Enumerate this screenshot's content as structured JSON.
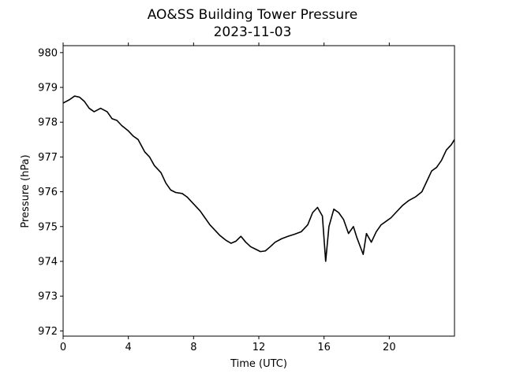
{
  "chart_data": {
    "type": "line",
    "title": "AO&SS Building Tower Pressure",
    "subtitle": "2023-11-03",
    "xlabel": "Time (UTC)",
    "ylabel": "Pressure (hPa)",
    "xlim": [
      0,
      24
    ],
    "ylim": [
      971.85,
      980.2
    ],
    "xticks": [
      0,
      4,
      8,
      12,
      16,
      20
    ],
    "yticks": [
      972,
      973,
      974,
      975,
      976,
      977,
      978,
      979,
      980
    ],
    "grid": false,
    "line_color": "#000000",
    "series": [
      {
        "x": [
          0,
          0.4,
          0.7,
          1.0,
          1.3,
          1.6,
          1.9,
          2.3,
          2.7,
          3.0,
          3.3,
          3.6,
          4.0,
          4.3,
          4.6,
          5.0,
          5.3,
          5.6,
          6.0,
          6.3,
          6.6,
          6.9,
          7.3,
          7.6,
          8.0,
          8.4,
          8.7,
          9.0,
          9.3,
          9.6,
          10.0,
          10.3,
          10.6,
          10.9,
          11.2,
          11.5,
          11.8,
          12.1,
          12.4,
          12.7,
          13.0,
          13.4,
          13.8,
          14.2,
          14.6,
          15.0,
          15.3,
          15.6,
          15.9,
          16.1,
          16.3,
          16.6,
          16.9,
          17.2,
          17.5,
          17.8,
          18.0,
          18.2,
          18.4,
          18.6,
          18.9,
          19.2,
          19.5,
          19.8,
          20.1,
          20.4,
          20.8,
          21.2,
          21.6,
          22.0,
          22.3,
          22.6,
          22.9,
          23.2,
          23.5,
          23.8,
          24.0
        ],
        "y": [
          978.55,
          978.65,
          978.75,
          978.72,
          978.6,
          978.4,
          978.3,
          978.4,
          978.3,
          978.1,
          978.05,
          977.9,
          977.75,
          977.6,
          977.5,
          977.15,
          977.0,
          976.75,
          976.55,
          976.25,
          976.05,
          975.98,
          975.95,
          975.85,
          975.65,
          975.45,
          975.25,
          975.05,
          974.9,
          974.75,
          974.6,
          974.52,
          974.58,
          974.72,
          974.55,
          974.42,
          974.35,
          974.28,
          974.3,
          974.42,
          974.55,
          974.65,
          974.72,
          974.78,
          974.85,
          975.05,
          975.4,
          975.55,
          975.3,
          974.0,
          975.0,
          975.5,
          975.4,
          975.2,
          974.8,
          975.0,
          974.7,
          974.45,
          974.2,
          974.8,
          974.55,
          974.85,
          975.05,
          975.15,
          975.25,
          975.4,
          975.6,
          975.75,
          975.85,
          976.0,
          976.3,
          976.6,
          976.7,
          976.9,
          977.2,
          977.35,
          977.5
        ]
      }
    ]
  }
}
